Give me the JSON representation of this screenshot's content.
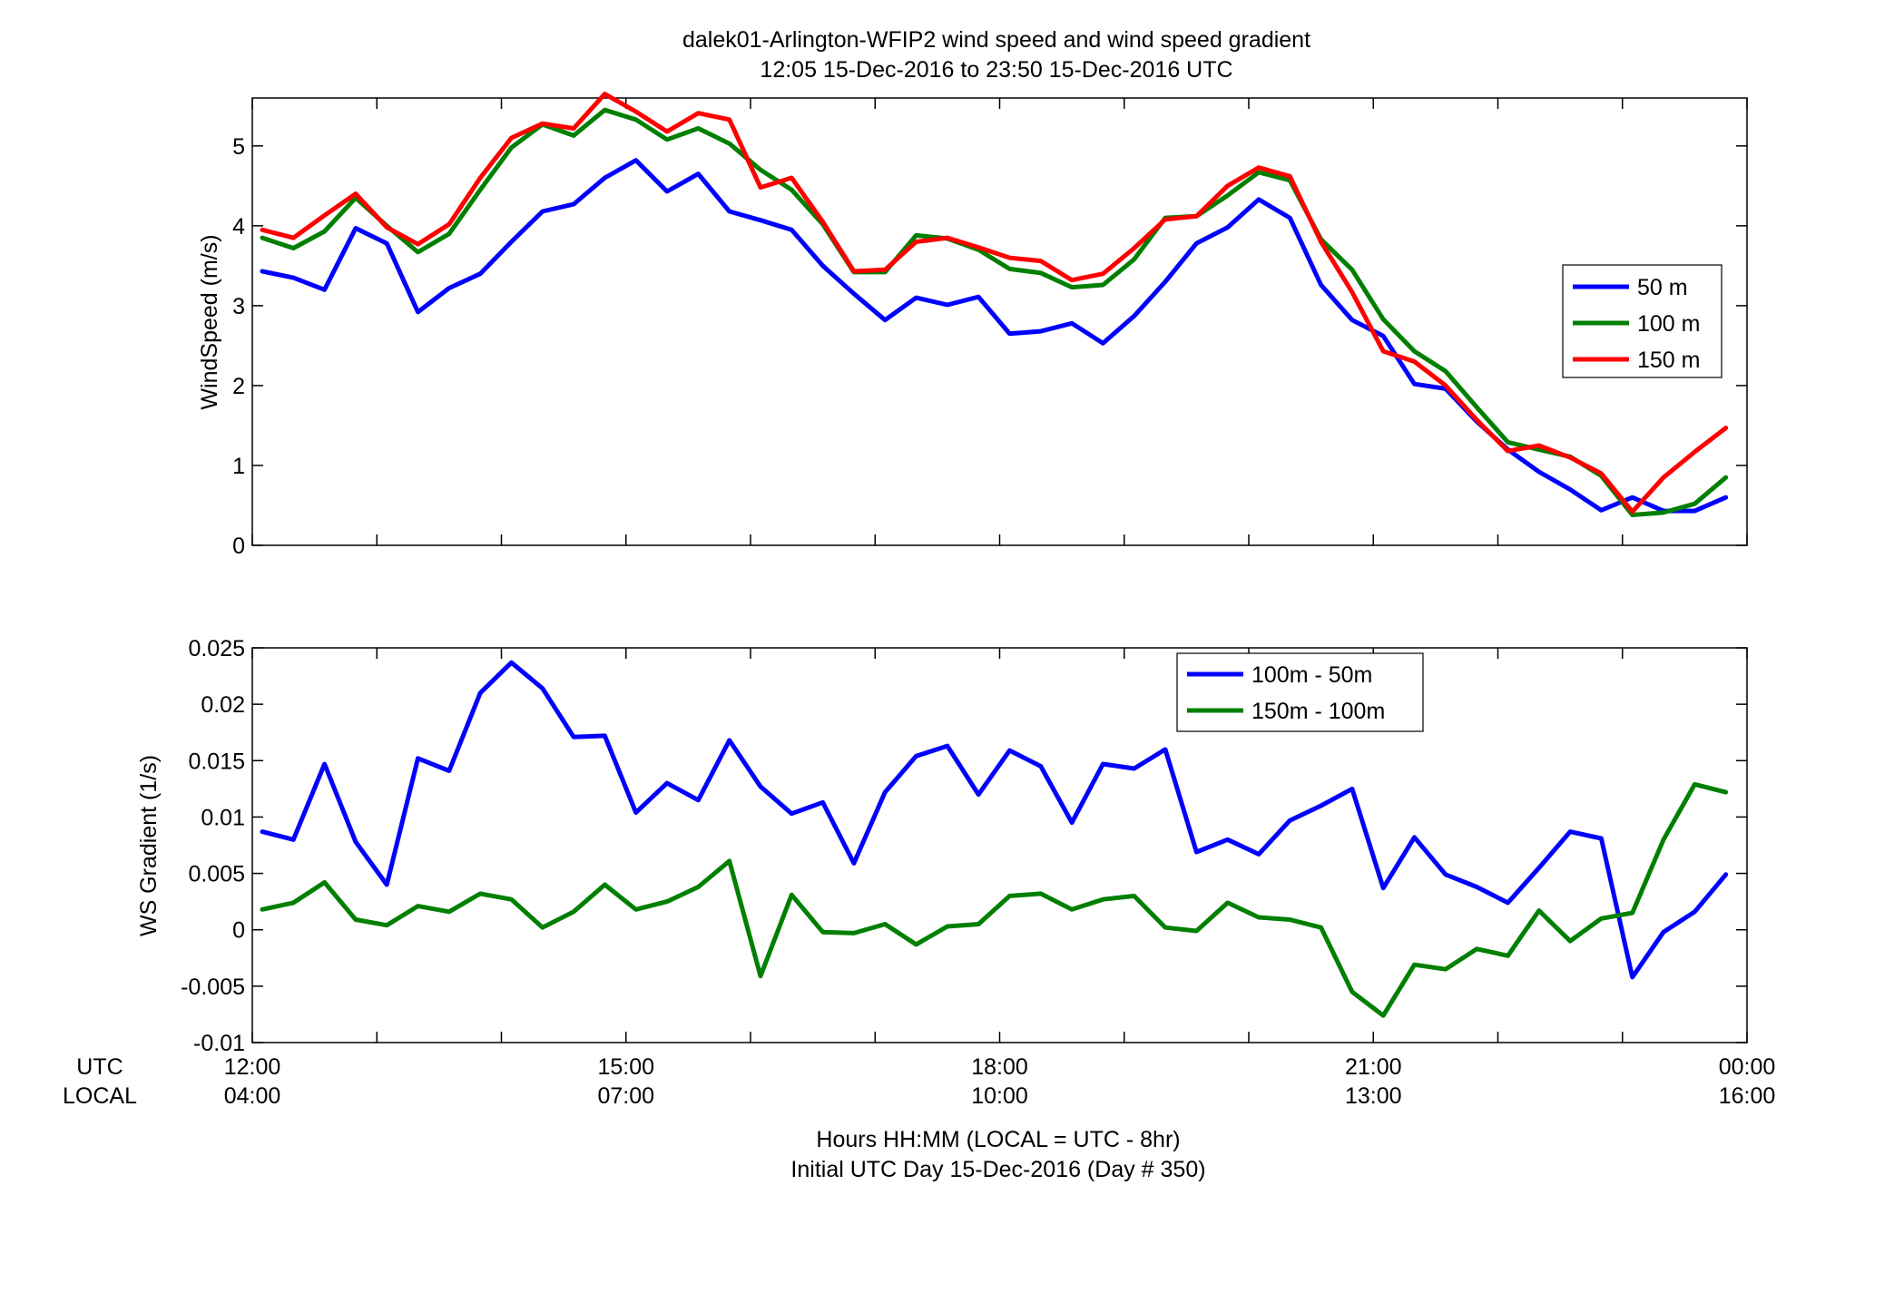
{
  "figure": {
    "title_line1": "dalek01-Arlington-WFIP2  wind speed and wind speed gradient",
    "title_line2": "12:05 15-Dec-2016 to 23:50 15-Dec-2016  UTC",
    "row_label_utc": "UTC",
    "row_label_local": "LOCAL",
    "xlabel_line1": "Hours HH:MM  (LOCAL = UTC - 8hr)",
    "xlabel_line2": "Initial UTC Day 15-Dec-2016 (Day # 350)",
    "x_ticks_utc": [
      "12:00",
      "15:00",
      "18:00",
      "21:00",
      "00:00"
    ],
    "x_ticks_local": [
      "04:00",
      "07:00",
      "10:00",
      "13:00",
      "16:00"
    ]
  },
  "chart_data": [
    {
      "type": "line",
      "ylabel": "WindSpeed (m/s)",
      "xlim": [
        12,
        24
      ],
      "ylim": [
        0,
        5.6
      ],
      "y_ticks": [
        0,
        1,
        2,
        3,
        4,
        5
      ],
      "grid": false,
      "legend_position": "right",
      "x": [
        12.08,
        12.33,
        12.58,
        12.83,
        13.08,
        13.33,
        13.58,
        13.83,
        14.08,
        14.33,
        14.58,
        14.83,
        15.08,
        15.33,
        15.58,
        15.83,
        16.08,
        16.33,
        16.58,
        16.83,
        17.08,
        17.33,
        17.58,
        17.83,
        18.08,
        18.33,
        18.58,
        18.83,
        19.08,
        19.33,
        19.58,
        19.83,
        20.08,
        20.33,
        20.58,
        20.83,
        21.08,
        21.33,
        21.58,
        21.83,
        22.08,
        22.33,
        22.58,
        22.83,
        23.08,
        23.33,
        23.58,
        23.83
      ],
      "series": [
        {
          "name": "50 m",
          "color": "#0000ff",
          "values": [
            3.43,
            3.35,
            3.2,
            3.97,
            3.78,
            2.92,
            3.22,
            3.4,
            3.8,
            4.18,
            4.27,
            4.6,
            4.82,
            4.43,
            4.65,
            4.18,
            4.07,
            3.95,
            3.5,
            3.15,
            2.82,
            3.1,
            3.01,
            3.11,
            2.65,
            2.68,
            2.78,
            2.53,
            2.87,
            3.3,
            3.78,
            3.98,
            4.33,
            4.1,
            3.26,
            2.82,
            2.62,
            2.02,
            1.96,
            1.55,
            1.2,
            0.92,
            0.7,
            0.44,
            0.6,
            0.43,
            0.43,
            0.6
          ]
        },
        {
          "name": "100 m",
          "color": "#007f00",
          "values": [
            3.85,
            3.72,
            3.93,
            4.35,
            4.0,
            3.67,
            3.9,
            4.45,
            4.98,
            5.27,
            5.13,
            5.45,
            5.33,
            5.08,
            5.22,
            5.03,
            4.7,
            4.45,
            4.02,
            3.42,
            3.42,
            3.88,
            3.84,
            3.7,
            3.46,
            3.41,
            3.23,
            3.26,
            3.58,
            4.1,
            4.12,
            4.38,
            4.67,
            4.57,
            3.83,
            3.45,
            2.83,
            2.43,
            2.18,
            1.73,
            1.29,
            1.2,
            1.11,
            0.87,
            0.38,
            0.41,
            0.52,
            0.85
          ]
        },
        {
          "name": "150 m",
          "color": "#ff0000",
          "values": [
            3.95,
            3.85,
            4.13,
            4.4,
            3.98,
            3.77,
            4.02,
            4.6,
            5.1,
            5.28,
            5.22,
            5.65,
            5.43,
            5.18,
            5.41,
            5.33,
            4.48,
            4.6,
            4.05,
            3.43,
            3.45,
            3.8,
            3.85,
            3.73,
            3.6,
            3.56,
            3.32,
            3.4,
            3.72,
            4.08,
            4.12,
            4.5,
            4.73,
            4.62,
            3.8,
            3.17,
            2.43,
            2.3,
            2.0,
            1.57,
            1.18,
            1.25,
            1.1,
            0.9,
            0.42,
            0.85,
            1.17,
            1.47
          ]
        }
      ]
    },
    {
      "type": "line",
      "ylabel": "WS Gradient (1/s)",
      "xlim": [
        12,
        24
      ],
      "ylim": [
        -0.01,
        0.025
      ],
      "y_ticks": [
        -0.01,
        -0.005,
        0,
        0.005,
        0.01,
        0.015,
        0.02,
        0.025
      ],
      "y_tick_labels": [
        "-0.01",
        "-0.005",
        "0",
        "0.005",
        "0.01",
        "0.015",
        "0.02",
        "0.025"
      ],
      "grid": false,
      "legend_position": "top-right",
      "x": [
        12.08,
        12.33,
        12.58,
        12.83,
        13.08,
        13.33,
        13.58,
        13.83,
        14.08,
        14.33,
        14.58,
        14.83,
        15.08,
        15.33,
        15.58,
        15.83,
        16.08,
        16.33,
        16.58,
        16.83,
        17.08,
        17.33,
        17.58,
        17.83,
        18.08,
        18.33,
        18.58,
        18.83,
        19.08,
        19.33,
        19.58,
        19.83,
        20.08,
        20.33,
        20.58,
        20.83,
        21.08,
        21.33,
        21.58,
        21.83,
        22.08,
        22.33,
        22.58,
        22.83,
        23.08,
        23.33,
        23.58,
        23.83
      ],
      "series": [
        {
          "name": "100m - 50m",
          "color": "#0000ff",
          "values": [
            0.0087,
            0.008,
            0.0147,
            0.0078,
            0.004,
            0.0152,
            0.0141,
            0.021,
            0.0237,
            0.0214,
            0.0171,
            0.0172,
            0.0104,
            0.013,
            0.0115,
            0.0168,
            0.0127,
            0.0103,
            0.0113,
            0.0059,
            0.0122,
            0.0154,
            0.0163,
            0.012,
            0.0159,
            0.0145,
            0.0095,
            0.0147,
            0.0143,
            0.016,
            0.0069,
            0.008,
            0.0067,
            0.0097,
            0.011,
            0.0125,
            0.0037,
            0.0082,
            0.0049,
            0.0038,
            0.0024,
            0.0055,
            0.0087,
            0.0081,
            -0.0042,
            -0.0002,
            0.0016,
            0.0049
          ]
        },
        {
          "name": "150m - 100m",
          "color": "#007f00",
          "values": [
            0.0018,
            0.0024,
            0.0042,
            0.0009,
            0.0004,
            0.0021,
            0.0016,
            0.0032,
            0.0027,
            0.0002,
            0.0016,
            0.004,
            0.0018,
            0.0025,
            0.0038,
            0.0061,
            -0.0041,
            0.0031,
            -0.0002,
            -0.0003,
            0.0005,
            -0.0013,
            0.0003,
            0.0005,
            0.003,
            0.0032,
            0.0018,
            0.0027,
            0.003,
            0.0002,
            -0.0001,
            0.0024,
            0.0011,
            0.0009,
            0.0002,
            -0.0055,
            -0.0076,
            -0.0031,
            -0.0035,
            -0.0017,
            -0.0023,
            0.0017,
            -0.001,
            0.001,
            0.0015,
            0.008,
            0.0129,
            0.0122
          ]
        }
      ]
    }
  ]
}
